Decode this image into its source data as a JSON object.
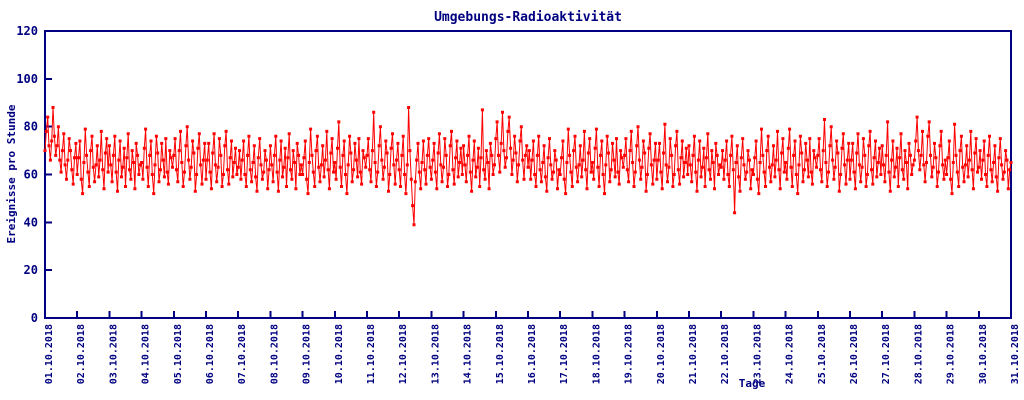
{
  "chart_data": {
    "type": "line",
    "title": "Umgebungs-Radioaktivität",
    "xlabel": "Tage",
    "ylabel": "Ereignisse pro Stunde",
    "ylim": [
      0,
      120
    ],
    "yticks": [
      0,
      20,
      40,
      60,
      80,
      100,
      120
    ],
    "xtick_labels": [
      "01.10.2018",
      "02.10.2018",
      "03.10.2018",
      "04.10.2018",
      "05.10.2018",
      "06.10.2018",
      "07.10.2018",
      "08.10.2018",
      "09.10.2018",
      "10.10.2018",
      "11.10.2018",
      "12.10.2018",
      "13.10.2018",
      "14.10.2018",
      "15.10.2018",
      "16.10.2018",
      "17.10.2018",
      "18.10.2018",
      "19.10.2018",
      "20.10.2018",
      "21.10.2018",
      "22.10.2018",
      "23.10.2018",
      "24.10.2018",
      "25.10.2018",
      "26.10.2018",
      "27.10.2018",
      "28.10.2018",
      "29.10.2018",
      "30.10.2018",
      "31.10.2018"
    ],
    "grid": false,
    "legend": "none",
    "axis_color": "#000080",
    "background_color": "#ffffff",
    "series": [
      {
        "name": "Ereignisse pro Stunde",
        "color": "#ff0000",
        "style": "linespoints",
        "marker": "filled-square",
        "points_per_day": 24,
        "values": [
          70,
          78,
          84,
          72,
          66,
          74,
          88,
          76,
          68,
          72,
          80,
          66,
          61,
          70,
          77,
          64,
          58,
          66,
          75,
          70,
          62,
          56,
          67,
          73,
          60,
          67,
          74,
          58,
          52,
          65,
          79,
          68,
          61,
          55,
          70,
          76,
          63,
          57,
          64,
          72,
          59,
          66,
          78,
          62,
          54,
          69,
          75,
          61,
          72,
          64,
          57,
          68,
          76,
          61,
          53,
          66,
          74,
          59,
          63,
          71,
          55,
          67,
          77,
          62,
          58,
          70,
          65,
          54,
          73,
          68,
          60,
          64,
          65,
          58,
          71,
          79,
          63,
          55,
          68,
          74,
          60,
          52,
          64,
          76,
          69,
          57,
          62,
          73,
          66,
          59,
          75,
          61,
          56,
          70,
          67,
          63,
          68,
          75,
          62,
          57,
          70,
          78,
          65,
          55,
          61,
          72,
          80,
          66,
          58,
          63,
          74,
          69,
          53,
          60,
          71,
          77,
          64,
          56,
          66,
          73,
          58,
          66,
          73,
          61,
          54,
          69,
          77,
          64,
          57,
          63,
          75,
          68,
          55,
          60,
          72,
          78,
          62,
          56,
          67,
          74,
          59,
          65,
          71,
          60,
          63,
          70,
          58,
          66,
          74,
          60,
          55,
          68,
          76,
          62,
          57,
          65,
          72,
          59,
          53,
          67,
          75,
          64,
          58,
          61,
          70,
          66,
          54,
          62,
          72,
          64,
          57,
          68,
          76,
          61,
          53,
          66,
          74,
          59,
          63,
          71,
          55,
          67,
          77,
          62,
          58,
          70,
          65,
          54,
          73,
          68,
          60,
          64,
          60,
          67,
          74,
          58,
          52,
          65,
          79,
          68,
          61,
          55,
          70,
          76,
          63,
          57,
          64,
          72,
          59,
          66,
          78,
          62,
          54,
          69,
          75,
          61,
          65,
          58,
          71,
          82,
          63,
          55,
          68,
          74,
          60,
          52,
          64,
          76,
          69,
          57,
          62,
          73,
          66,
          59,
          75,
          61,
          56,
          70,
          67,
          63,
          68,
          75,
          62,
          57,
          70,
          86,
          65,
          55,
          61,
          72,
          80,
          66,
          58,
          63,
          74,
          69,
          53,
          60,
          71,
          77,
          64,
          56,
          66,
          73,
          62,
          55,
          68,
          76,
          60,
          52,
          64,
          88,
          70,
          58,
          47,
          39,
          57,
          66,
          73,
          61,
          54,
          65,
          74,
          62,
          56,
          68,
          75,
          63,
          58,
          66,
          73,
          61,
          54,
          69,
          77,
          64,
          57,
          63,
          75,
          68,
          55,
          60,
          72,
          78,
          62,
          56,
          67,
          74,
          59,
          65,
          71,
          60,
          72,
          64,
          57,
          68,
          76,
          61,
          53,
          66,
          74,
          59,
          63,
          71,
          55,
          67,
          87,
          62,
          58,
          70,
          65,
          54,
          73,
          68,
          60,
          64,
          75,
          82,
          68,
          61,
          73,
          86,
          70,
          63,
          67,
          78,
          84,
          71,
          60,
          66,
          76,
          69,
          57,
          64,
          74,
          80,
          66,
          58,
          68,
          72,
          63,
          70,
          58,
          66,
          74,
          60,
          55,
          68,
          76,
          62,
          57,
          65,
          72,
          59,
          53,
          67,
          75,
          64,
          58,
          61,
          70,
          66,
          54,
          62,
          60,
          67,
          74,
          58,
          52,
          65,
          79,
          68,
          61,
          55,
          70,
          76,
          63,
          57,
          64,
          72,
          59,
          66,
          78,
          62,
          54,
          69,
          75,
          61,
          65,
          58,
          71,
          79,
          63,
          55,
          68,
          74,
          60,
          52,
          64,
          76,
          69,
          57,
          62,
          73,
          66,
          59,
          75,
          61,
          56,
          70,
          67,
          63,
          68,
          75,
          62,
          57,
          70,
          78,
          65,
          55,
          61,
          72,
          80,
          66,
          58,
          63,
          74,
          69,
          53,
          60,
          71,
          77,
          64,
          56,
          66,
          73,
          58,
          66,
          73,
          61,
          54,
          69,
          81,
          64,
          57,
          63,
          75,
          68,
          55,
          60,
          72,
          78,
          62,
          56,
          67,
          74,
          59,
          65,
          71,
          60,
          72,
          64,
          57,
          68,
          76,
          61,
          53,
          66,
          74,
          59,
          63,
          71,
          55,
          67,
          77,
          62,
          58,
          70,
          65,
          54,
          73,
          68,
          60,
          64,
          63,
          70,
          58,
          66,
          74,
          60,
          55,
          68,
          76,
          62,
          44,
          65,
          72,
          59,
          53,
          67,
          75,
          64,
          58,
          61,
          70,
          66,
          54,
          62,
          60,
          67,
          74,
          58,
          52,
          65,
          79,
          68,
          61,
          55,
          70,
          76,
          63,
          57,
          64,
          72,
          59,
          66,
          78,
          62,
          54,
          69,
          75,
          61,
          65,
          58,
          71,
          79,
          63,
          55,
          68,
          74,
          60,
          52,
          64,
          76,
          69,
          57,
          62,
          73,
          66,
          59,
          75,
          61,
          56,
          70,
          67,
          63,
          68,
          75,
          62,
          57,
          70,
          83,
          65,
          55,
          61,
          72,
          80,
          66,
          58,
          63,
          74,
          69,
          53,
          60,
          71,
          77,
          64,
          56,
          66,
          73,
          58,
          66,
          73,
          61,
          54,
          69,
          77,
          64,
          57,
          63,
          75,
          68,
          55,
          60,
          72,
          78,
          62,
          56,
          67,
          74,
          59,
          65,
          71,
          60,
          72,
          64,
          57,
          68,
          82,
          61,
          53,
          66,
          74,
          59,
          63,
          71,
          55,
          67,
          77,
          62,
          58,
          70,
          65,
          54,
          73,
          68,
          60,
          64,
          66,
          74,
          84,
          70,
          62,
          68,
          78,
          64,
          57,
          65,
          76,
          82,
          68,
          59,
          63,
          73,
          67,
          55,
          61,
          72,
          78,
          64,
          58,
          66,
          60,
          67,
          74,
          58,
          52,
          65,
          81,
          68,
          61,
          55,
          70,
          76,
          63,
          57,
          64,
          72,
          59,
          66,
          78,
          62,
          54,
          69,
          75,
          61,
          63,
          70,
          58,
          66,
          74,
          60,
          55,
          68,
          76,
          62,
          57,
          65,
          72,
          59,
          53,
          67,
          75,
          64,
          58,
          61,
          70,
          66,
          54,
          62,
          65
        ]
      }
    ]
  }
}
